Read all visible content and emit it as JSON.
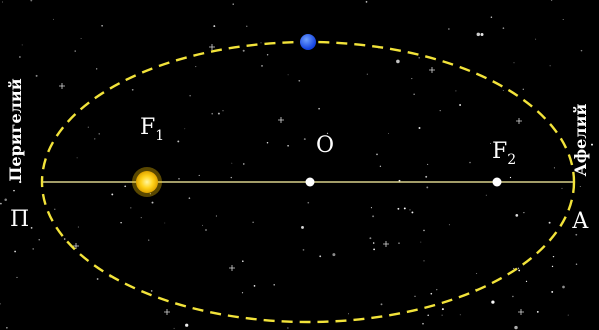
{
  "diagram": {
    "points": {
      "focus1": {
        "base": "F",
        "sub": "1"
      },
      "center": {
        "label": "O"
      },
      "focus2": {
        "base": "F",
        "sub": "2"
      },
      "perihelion": {
        "label": "П"
      },
      "aphelion": {
        "label": "А"
      }
    },
    "side_labels": {
      "perihelion": "Перигелий",
      "aphelion": "Афелий"
    },
    "colors": {
      "background": "#000000",
      "orbit": "#f2e33a",
      "axis": "#d8d08a",
      "sun": "#ffd21a",
      "planet": "#1f5fff",
      "point": "#ffffff",
      "star": "#ffffff"
    },
    "icons": {
      "sun": "sun-icon",
      "planet": "planet-icon"
    }
  }
}
